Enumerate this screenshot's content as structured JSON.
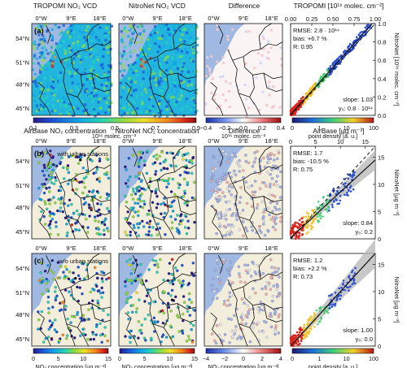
{
  "figure": {
    "rows": [
      {
        "panel_label": "(a)",
        "titles": [
          "TROPOMI NO₂ VCD",
          "NitroNet NO₂ VCD",
          "Difference",
          "TROPOMI [10¹⁶ molec. cm⁻²]"
        ],
        "map_note": "",
        "stats": {
          "rmse": "RMSE: 2.8 · 10¹⁴",
          "bias": "bias: +6.7 %",
          "r": "R: 0.95",
          "slope": "slope: 1.03",
          "y0": "y₀: 0.8 · 10¹⁴"
        },
        "scatter_right_label": "NitroNet [10¹⁶ molec. cm⁻²]"
      },
      {
        "panel_label": "(b)",
        "titles": [
          "AirBase NO₂ concentration",
          "NitroNet NO₂ concentration",
          "Difference",
          "AirBase [µg m⁻³]"
        ],
        "map_note": "with urban stations",
        "stats": {
          "rmse": "RMSE: 1.7",
          "bias": "bias: -10.5 %",
          "r": "R: 0.75",
          "slope": "slope: 0.84",
          "y0": "y₀: 0.2"
        },
        "scatter_right_label": "NitroNet [µg m⁻³]"
      },
      {
        "panel_label": "(c)",
        "titles": [],
        "map_note": "w/o urban stations",
        "stats": {
          "rmse": "RMSE: 1.2",
          "bias": "bias: +2.2 %",
          "r": "R: 0.73",
          "slope": "slope: 1.00",
          "y0": "y₀: 0.0"
        },
        "scatter_right_label": "NitroNet [µg m⁻³]"
      }
    ],
    "lon_ticks": [
      "0°W",
      "9°E",
      "18°E"
    ],
    "lat_ticks": [
      "54°N",
      "51°N",
      "48°N",
      "45°N"
    ],
    "top_colorbars": {
      "vcd": {
        "ticks": [
          "0.1",
          "0.3",
          "0.5",
          "0.7",
          "0.9"
        ],
        "label": "10¹⁶ molec. cm⁻²"
      },
      "diff": {
        "ticks": [
          "−0.4",
          "−0.2",
          "0.0",
          "0.2",
          "0.4"
        ],
        "label": "10¹⁶ molec. cm⁻²"
      },
      "density": {
        "ticks": [
          "0",
          "1",
          "10",
          "100"
        ],
        "label": "point density [a. u.]"
      }
    },
    "bottom_colorbars": {
      "conc": {
        "ticks": [
          "0",
          "5",
          "10",
          "15"
        ],
        "label": "NO₂ concentration [µg m⁻³]"
      },
      "diff": {
        "ticks": [
          "−4",
          "−2",
          "0",
          "2",
          "4"
        ],
        "label": "NO₂ concentration [µg m⁻³]"
      },
      "density": {
        "ticks": [
          "0",
          "1",
          "10",
          "100"
        ],
        "label": "point density [a. u.]"
      }
    },
    "scatter_top_ticks": [
      "0.00",
      "0.25",
      "0.50",
      "0.75",
      "1.00"
    ],
    "scatter_a_right_ticks": [
      "0.0",
      "0.2",
      "0.4",
      "0.6",
      "0.8",
      "1.0"
    ],
    "scatter_bc_ticks": [
      "0",
      "5",
      "10",
      "15"
    ],
    "colors": {
      "ocean": "#9fb9e2",
      "land_empty": "#f3eedc",
      "border": "#111111",
      "fit": "#111111",
      "band": "#b5b5b5"
    }
  },
  "chart_data": [
    {
      "type": "scatter",
      "panel": "(a)",
      "x_label": "TROPOMI [10¹⁶ molec. cm⁻²]",
      "y_label": "NitroNet [10¹⁶ molec. cm⁻²]",
      "xlim": [
        0,
        1
      ],
      "ylim": [
        0,
        1
      ],
      "fit": {
        "slope": 1.03,
        "intercept": 0.008
      },
      "stats": {
        "rmse": "2.8e14",
        "bias_pct": 6.7,
        "r": 0.95
      }
    },
    {
      "type": "scatter",
      "panel": "(b)",
      "x_label": "AirBase [µg m⁻³]",
      "y_label": "NitroNet [µg m⁻³]",
      "xlim": [
        0,
        17
      ],
      "ylim": [
        0,
        17
      ],
      "fit": {
        "slope": 0.84,
        "intercept": 0.2
      },
      "stats": {
        "rmse": 1.7,
        "bias_pct": -10.5,
        "r": 0.75
      }
    },
    {
      "type": "scatter",
      "panel": "(c)",
      "x_label": "AirBase [µg m⁻³]",
      "y_label": "NitroNet [µg m⁻³]",
      "xlim": [
        0,
        17
      ],
      "ylim": [
        0,
        17
      ],
      "fit": {
        "slope": 1.0,
        "intercept": 0.0
      },
      "stats": {
        "rmse": 1.2,
        "bias_pct": 2.2,
        "r": 0.73
      }
    }
  ]
}
